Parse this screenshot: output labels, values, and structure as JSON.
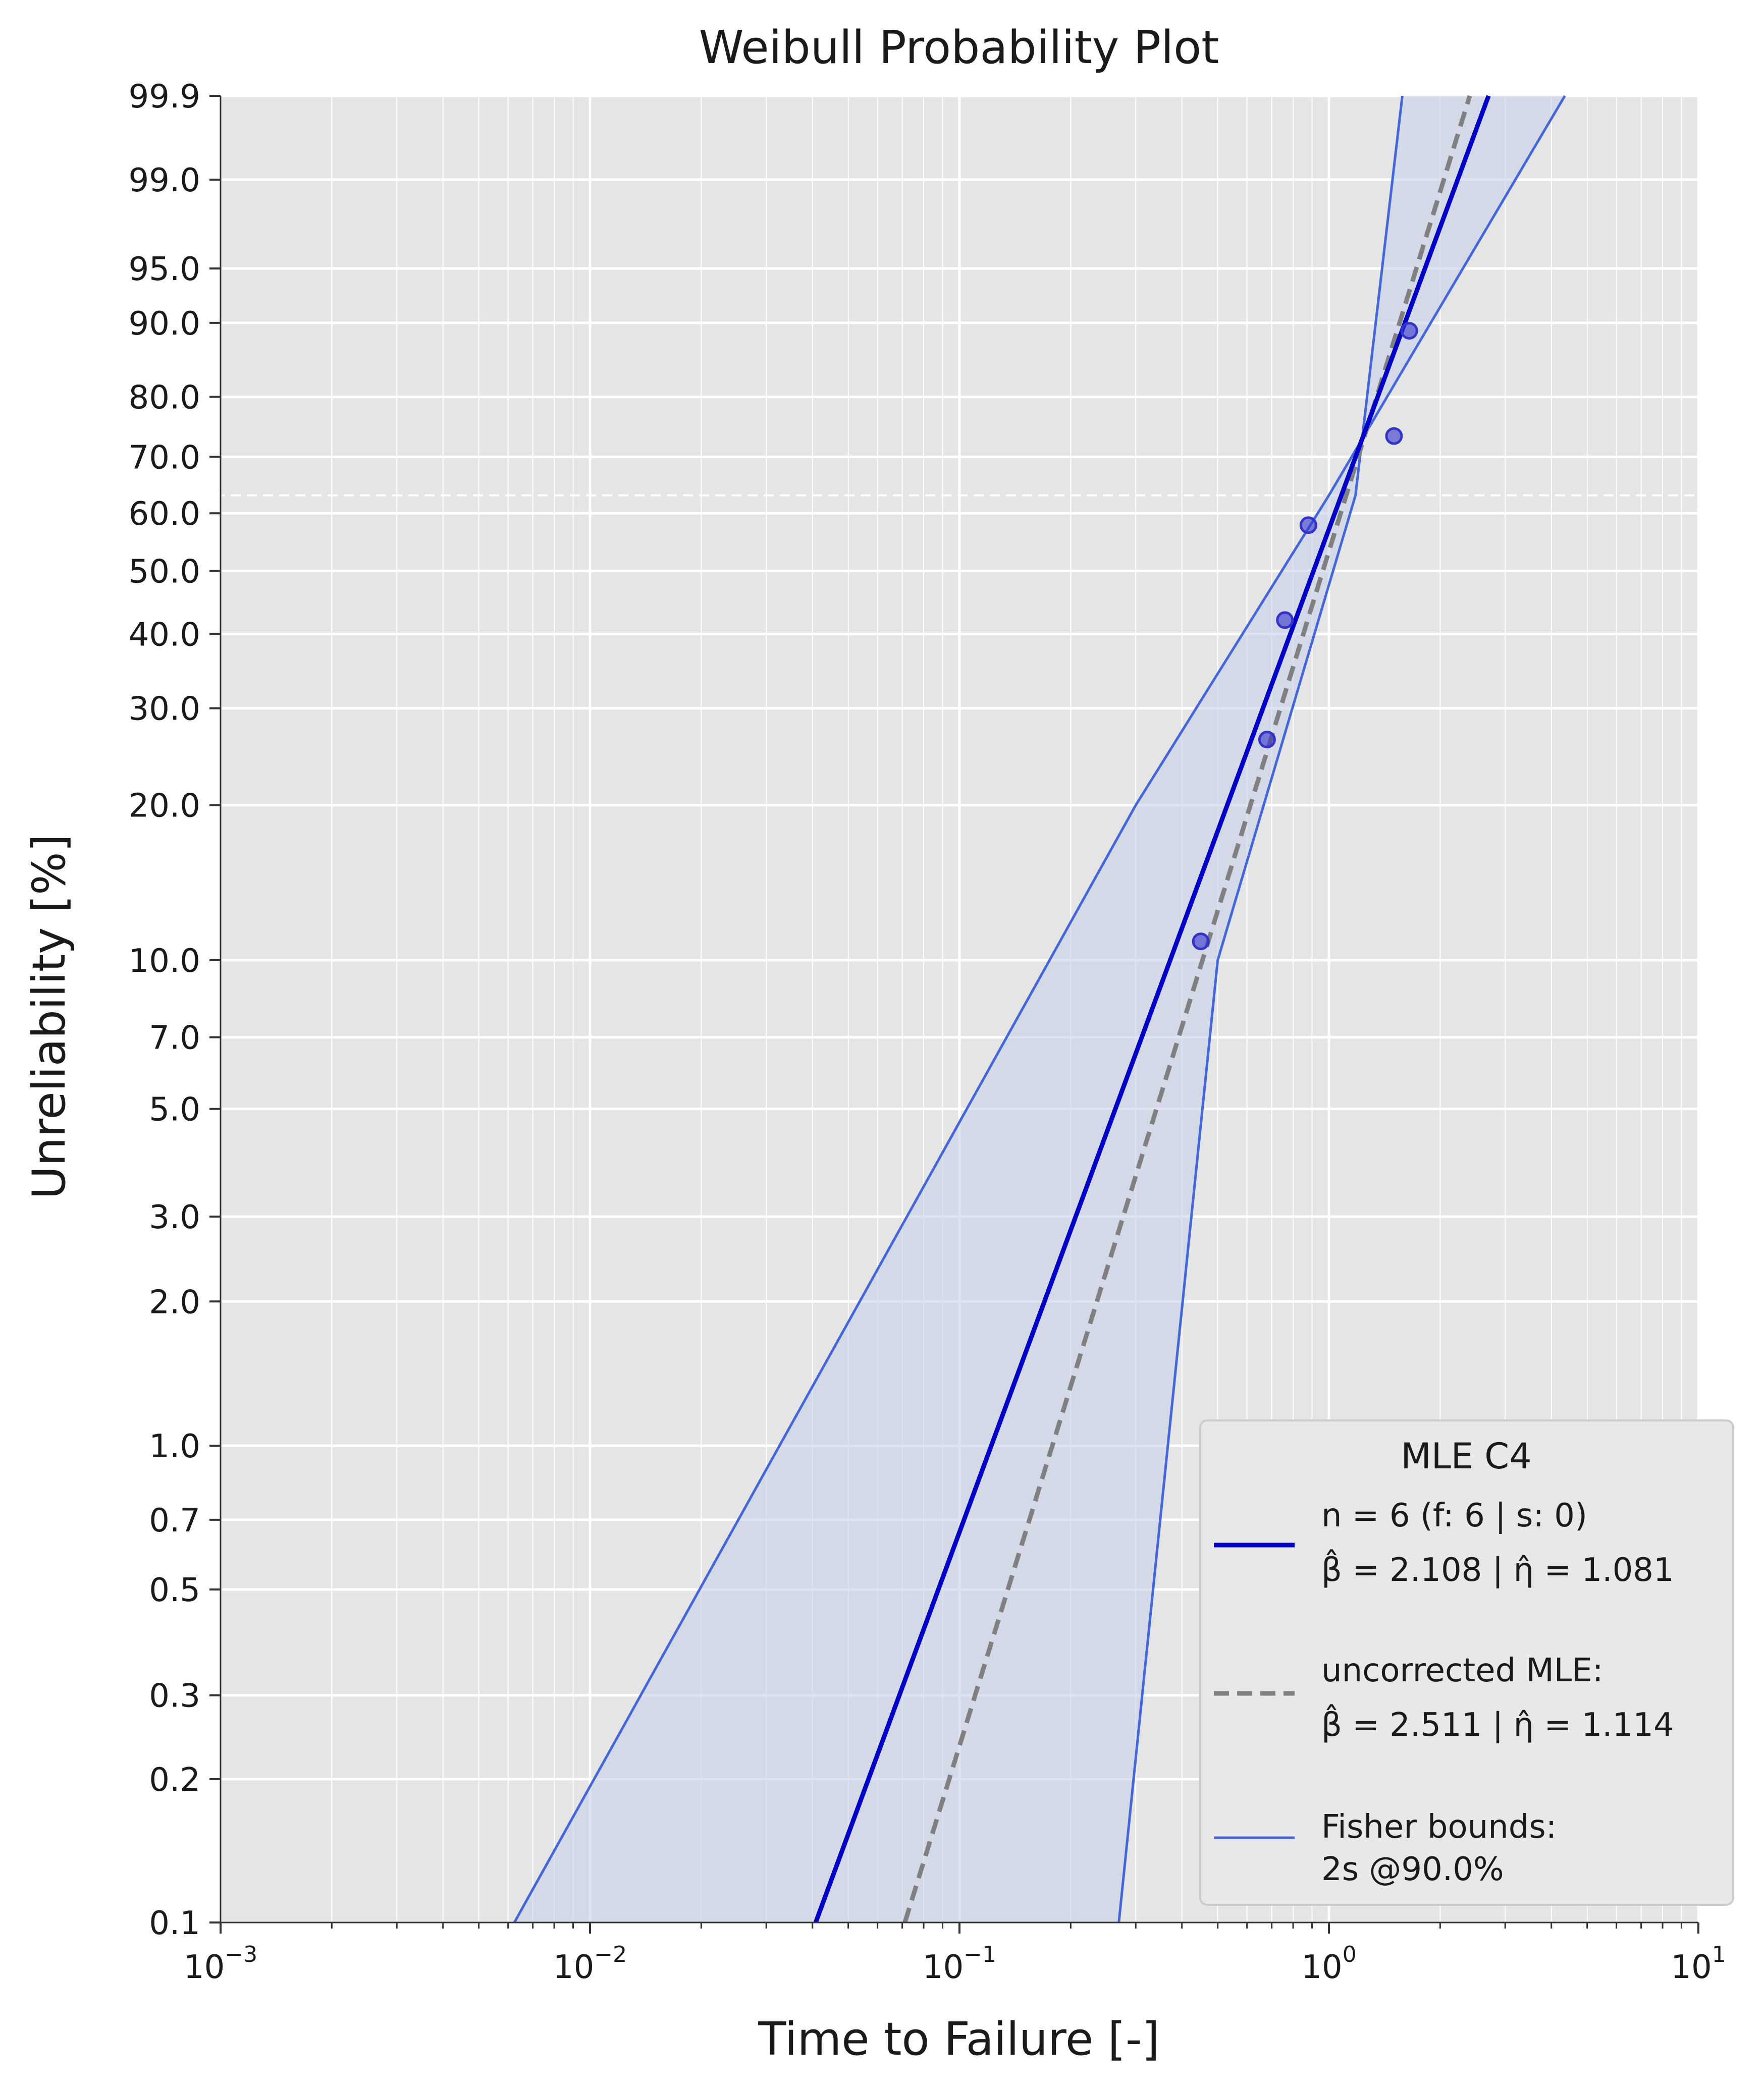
{
  "chart_data": {
    "type": "scatter",
    "title": "Weibull Probability Plot",
    "xlabel": "Time to Failure [-]",
    "ylabel": "Unreliability [%]",
    "x_scale": "log",
    "y_scale": "weibull",
    "xlim": [
      0.001,
      10
    ],
    "ylim": [
      0.1,
      99.9
    ],
    "x_tick_base": "10",
    "x_ticks": [
      {
        "value": 0.001,
        "exp": "−3"
      },
      {
        "value": 0.01,
        "exp": "−2"
      },
      {
        "value": 0.1,
        "exp": "−1"
      },
      {
        "value": 1,
        "exp": "0"
      },
      {
        "value": 10,
        "exp": "1"
      }
    ],
    "y_ticks": [
      {
        "value": 0.1,
        "label": "0.1"
      },
      {
        "value": 0.2,
        "label": "0.2"
      },
      {
        "value": 0.3,
        "label": "0.3"
      },
      {
        "value": 0.5,
        "label": "0.5"
      },
      {
        "value": 0.7,
        "label": "0.7"
      },
      {
        "value": 1.0,
        "label": "1.0"
      },
      {
        "value": 2.0,
        "label": "2.0"
      },
      {
        "value": 3.0,
        "label": "3.0"
      },
      {
        "value": 5.0,
        "label": "5.0"
      },
      {
        "value": 7.0,
        "label": "7.0"
      },
      {
        "value": 10.0,
        "label": "10.0"
      },
      {
        "value": 20.0,
        "label": "20.0"
      },
      {
        "value": 30.0,
        "label": "30.0"
      },
      {
        "value": 40.0,
        "label": "40.0"
      },
      {
        "value": 50.0,
        "label": "50.0"
      },
      {
        "value": 60.0,
        "label": "60.0"
      },
      {
        "value": 70.0,
        "label": "70.0"
      },
      {
        "value": 80.0,
        "label": "80.0"
      },
      {
        "value": 90.0,
        "label": "90.0"
      },
      {
        "value": 95.0,
        "label": "95.0"
      },
      {
        "value": 99.0,
        "label": "99.0"
      },
      {
        "value": 99.9,
        "label": "99.9"
      }
    ],
    "characteristic_line_pct": 63.2,
    "grid": true,
    "legend_position": "lower-right",
    "legend_title": "MLE C4",
    "points": [
      {
        "x": 0.45,
        "y": 10.9
      },
      {
        "x": 0.68,
        "y": 26.4
      },
      {
        "x": 0.76,
        "y": 42.1
      },
      {
        "x": 0.88,
        "y": 57.9
      },
      {
        "x": 1.5,
        "y": 73.6
      },
      {
        "x": 1.65,
        "y": 89.1
      }
    ],
    "series": [
      {
        "legend": [
          "n = 6 (f: 6 | s: 0)",
          "β̂ = 2.108 | η̂ = 1.081"
        ],
        "style": "solid",
        "color": "#0000c8",
        "beta": 2.108,
        "eta": 1.081
      },
      {
        "legend": [
          "uncorrected MLE:",
          "β̂ = 2.511 | η̂ = 1.114"
        ],
        "style": "dashed",
        "color": "#808080",
        "beta": 2.511,
        "eta": 1.114
      },
      {
        "legend": [
          "Fisher bounds:",
          "2s @90.0%"
        ],
        "style": "bounds",
        "color": "#4466dd",
        "upper": [
          {
            "x": 0.00624,
            "y": 0.1
          },
          {
            "x": 0.3,
            "y": 20
          },
          {
            "x": 1.0,
            "y": 63.2
          },
          {
            "x": 4.35,
            "y": 99.9
          }
        ],
        "lower": [
          {
            "x": 0.27,
            "y": 0.1
          },
          {
            "x": 0.5,
            "y": 10
          },
          {
            "x": 1.18,
            "y": 63.2
          },
          {
            "x": 1.58,
            "y": 99.9
          }
        ]
      }
    ],
    "colors": {
      "background": "#e5e5e5",
      "grid": "#ffffff",
      "points": "#3333cc",
      "band_fill": "#c8d0ea"
    }
  }
}
